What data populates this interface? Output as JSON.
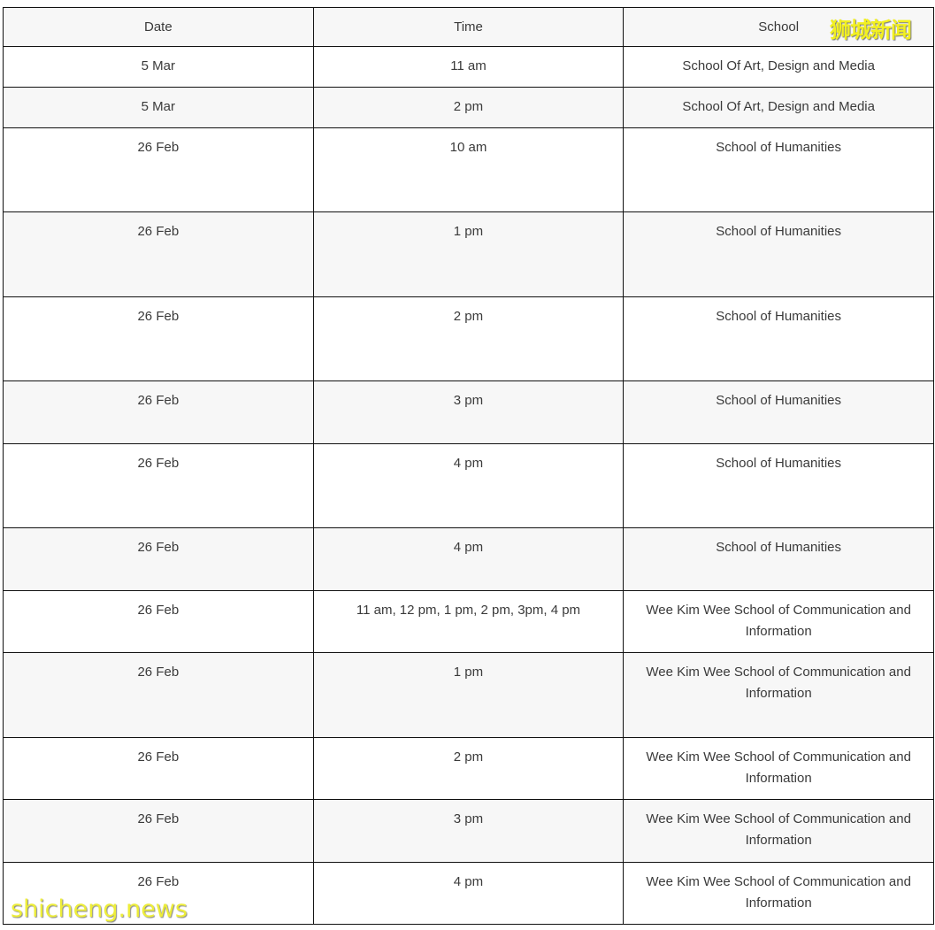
{
  "watermark_top": "狮城新闻",
  "watermark_bottom": "shicheng.news",
  "headers": [
    "Date",
    "Time",
    "School"
  ],
  "rows": [
    {
      "date": "5 Mar",
      "time": "11 am",
      "school": "School Of Art, Design and Media"
    },
    {
      "date": "5 Mar",
      "time": "2 pm",
      "school": "School Of Art, Design and Media"
    },
    {
      "date": "26 Feb",
      "time": "10 am",
      "school": "School of Humanities"
    },
    {
      "date": "26 Feb",
      "time": "1 pm",
      "school": "School of Humanities"
    },
    {
      "date": "26 Feb",
      "time": "2 pm",
      "school": "School of Humanities"
    },
    {
      "date": "26 Feb",
      "time": "3 pm",
      "school": "School of Humanities"
    },
    {
      "date": "26 Feb",
      "time": "4 pm",
      "school": "School of Humanities"
    },
    {
      "date": "26 Feb",
      "time": "4 pm",
      "school": "School of Humanities"
    },
    {
      "date": "26 Feb",
      "time": "11 am, 12 pm, 1 pm, 2 pm, 3pm, 4 pm",
      "school": "Wee Kim Wee School of Communication and Information"
    },
    {
      "date": "26 Feb",
      "time": "1 pm",
      "school": "Wee Kim Wee School of Communication and Information"
    },
    {
      "date": "26 Feb",
      "time": "2 pm",
      "school": "Wee Kim Wee School of Communication and Information"
    },
    {
      "date": "26 Feb",
      "time": "3 pm",
      "school": "Wee Kim Wee School of Communication and Information"
    },
    {
      "date": "26 Feb",
      "time": "4 pm",
      "school": "Wee Kim Wee School of Communication and Information"
    }
  ]
}
